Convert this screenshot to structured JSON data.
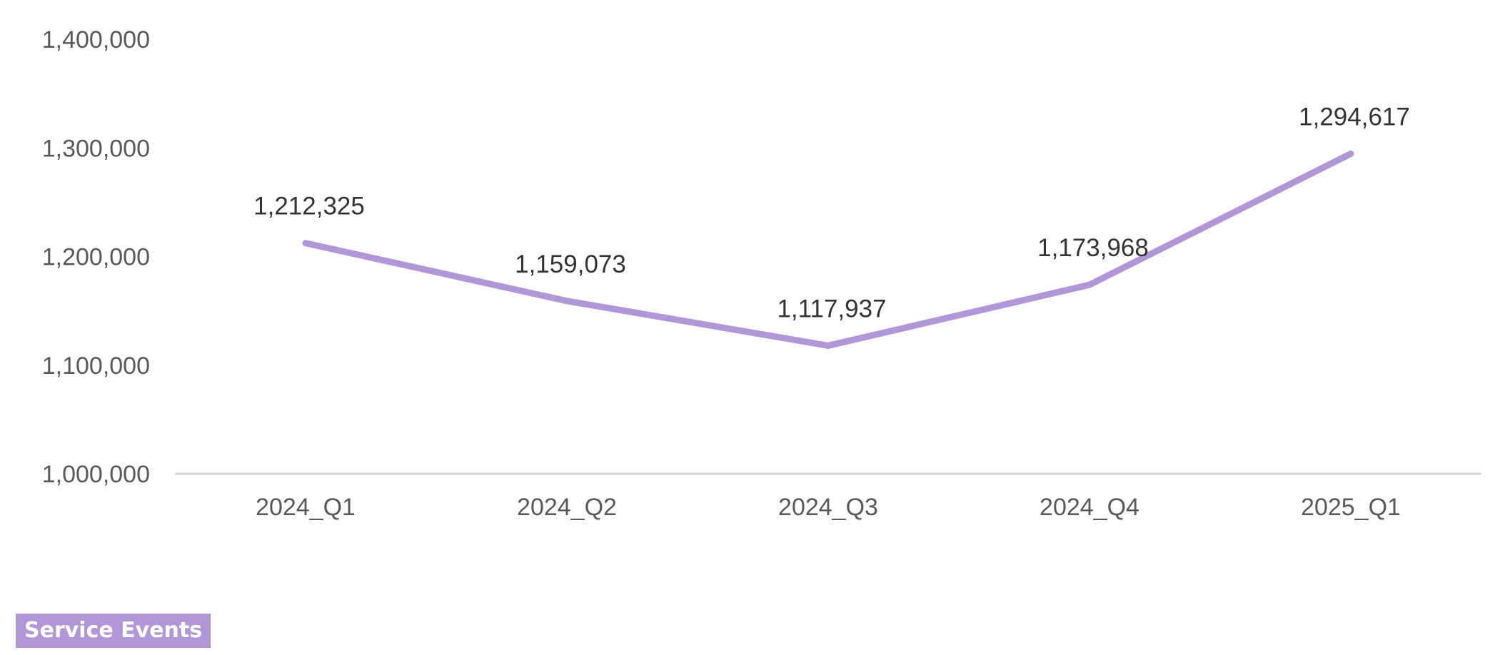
{
  "chart_data": {
    "type": "line",
    "categories": [
      "2024_Q1",
      "2024_Q2",
      "2024_Q3",
      "2024_Q4",
      "2025_Q1"
    ],
    "series": [
      {
        "name": "Service Events",
        "values": [
          1212325,
          1159073,
          1117937,
          1173968,
          1294617
        ],
        "value_labels": [
          "1,212,325",
          "1,159,073",
          "1,117,937",
          "1,173,968",
          "1,294,617"
        ]
      }
    ],
    "yticks": [
      1000000,
      1100000,
      1200000,
      1300000,
      1400000
    ],
    "ytick_labels": [
      "1,000,000",
      "1,100,000",
      "1,200,000",
      "1,300,000",
      "1,400,000"
    ],
    "ylim": [
      1000000,
      1400000
    ],
    "grid": false,
    "legend": "bottom-left",
    "colors": {
      "series": "#b197d8",
      "axis": "#d9d9d9"
    }
  }
}
